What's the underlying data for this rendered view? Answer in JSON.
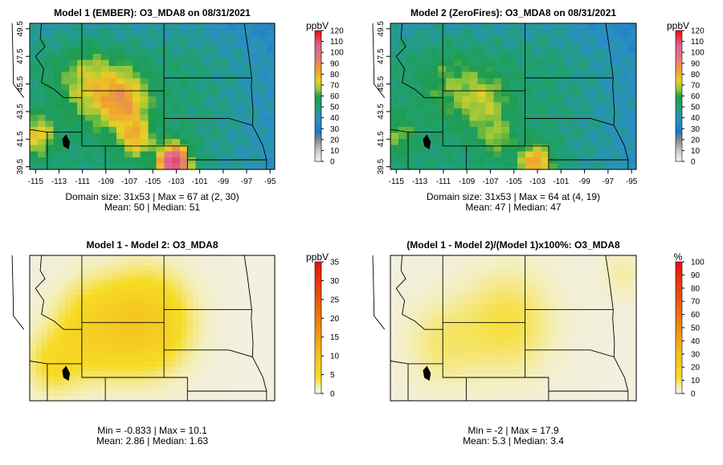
{
  "colors": {
    "low_gray": "#f0f0f0",
    "mid_green": "#1f9c4e",
    "high_red": "#e81414",
    "diff_yellow": "#f6dc24"
  },
  "chart_data": [
    {
      "type": "heatmap",
      "id": "p1",
      "title": "Model 1 (EMBER): O3_MDA8 on 08/31/2021",
      "unit": "ppbV",
      "colorscale": "ozone",
      "clim": [
        0,
        120
      ],
      "colorbar_ticks": [
        "0",
        "10",
        "20",
        "30",
        "40",
        "50",
        "60",
        "70",
        "80",
        "90",
        "100",
        "110",
        "120"
      ],
      "xticks": [
        "-115",
        "-113",
        "-111",
        "-109",
        "-107",
        "-105",
        "-103",
        "-101",
        "-99",
        "-97",
        "-95"
      ],
      "yticks": [
        "39.5",
        "41.5",
        "43.5",
        "45.5",
        "47.5",
        "49.5"
      ],
      "xlim": [
        -115.5,
        -94.6
      ],
      "ylim": [
        39.3,
        49.9
      ],
      "stats_line1": "Domain size: 31x53 | Max = 67 at (2, 30)",
      "stats_line2": "Mean: 50 |  Median: 51"
    },
    {
      "type": "heatmap",
      "id": "p2",
      "title": "Model 2 (ZeroFires): O3_MDA8 on 08/31/2021",
      "unit": "ppbV",
      "colorscale": "ozone",
      "clim": [
        0,
        120
      ],
      "colorbar_ticks": [
        "0",
        "10",
        "20",
        "30",
        "40",
        "50",
        "60",
        "70",
        "80",
        "90",
        "100",
        "110",
        "120"
      ],
      "xticks": [
        "-115",
        "-113",
        "-111",
        "-109",
        "-107",
        "-105",
        "-103",
        "-101",
        "-99",
        "-97",
        "-95"
      ],
      "yticks": [
        "39.5",
        "41.5",
        "43.5",
        "45.5",
        "47.5",
        "49.5"
      ],
      "xlim": [
        -115.5,
        -94.6
      ],
      "ylim": [
        39.3,
        49.9
      ],
      "stats_line1": "Domain size: 31x53 | Max = 64 at (4, 19)",
      "stats_line2": "Mean: 47 |  Median: 47"
    },
    {
      "type": "heatmap",
      "id": "p3",
      "title": "Model 1 - Model 2: O3_MDA8",
      "unit": "ppbV",
      "colorscale": "diff",
      "clim": [
        0,
        35
      ],
      "colorbar_ticks": [
        "0",
        "5",
        "10",
        "15",
        "20",
        "25",
        "30",
        "35"
      ],
      "xticks": [],
      "yticks": [],
      "xlim": [
        -115.5,
        -94.6
      ],
      "ylim": [
        39.3,
        49.9
      ],
      "stats_line1": "Min = -0.833 | Max = 10.1",
      "stats_line2": "Mean: 2.86 |  Median: 1.63"
    },
    {
      "type": "heatmap",
      "id": "p4",
      "title": "(Model 1 - Model 2)/(Model 1)x100%: O3_MDA8",
      "unit": "%",
      "colorscale": "diff",
      "clim": [
        0,
        100
      ],
      "colorbar_ticks": [
        "0",
        "10",
        "20",
        "30",
        "40",
        "50",
        "60",
        "70",
        "80",
        "90",
        "100"
      ],
      "xticks": [],
      "yticks": [],
      "xlim": [
        -115.5,
        -94.6
      ],
      "ylim": [
        39.3,
        49.9
      ],
      "stats_line1": "Min = -2 | Max = 17.9",
      "stats_line2": "Mean: 5.3 |  Median: 3.4"
    }
  ]
}
